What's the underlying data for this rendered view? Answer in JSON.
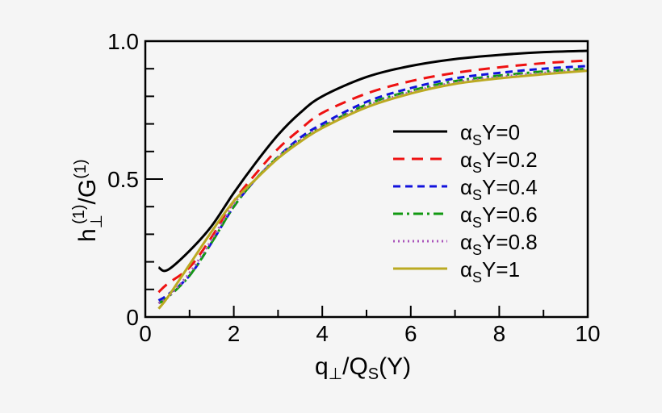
{
  "chart_data": {
    "type": "line",
    "title": "",
    "xlabel": "q⊥/Qs(Y)",
    "ylabel": "h⊥(1)/G(1)",
    "xlim": [
      0,
      10
    ],
    "ylim": [
      0,
      1.0
    ],
    "x_ticks": [
      "0",
      "2",
      "4",
      "6",
      "8",
      "10"
    ],
    "y_ticks": [
      "0",
      "0.5",
      "1.0"
    ],
    "grid": false,
    "legend_position": "inside right",
    "series": [
      {
        "name": "αsY=0",
        "color": "#000000",
        "dash": "solid",
        "x": [
          0.3,
          0.5,
          1,
          1.5,
          2,
          2.5,
          3,
          3.5,
          4,
          5,
          6,
          7,
          8,
          9,
          10
        ],
        "y": [
          0.18,
          0.17,
          0.24,
          0.33,
          0.45,
          0.56,
          0.66,
          0.74,
          0.8,
          0.87,
          0.91,
          0.935,
          0.95,
          0.96,
          0.965
        ]
      },
      {
        "name": "αsY=0.2",
        "color": "#ee1111",
        "dash": "dashed",
        "x": [
          0.3,
          0.5,
          1,
          1.5,
          2,
          2.5,
          3,
          3.5,
          4,
          5,
          6,
          7,
          8,
          9,
          10
        ],
        "y": [
          0.09,
          0.12,
          0.18,
          0.29,
          0.42,
          0.52,
          0.61,
          0.68,
          0.74,
          0.81,
          0.855,
          0.885,
          0.905,
          0.92,
          0.93
        ]
      },
      {
        "name": "αsY=0.4",
        "color": "#1111dd",
        "dash": "short-dashed",
        "x": [
          0.3,
          0.5,
          1,
          1.5,
          2,
          2.5,
          3,
          3.5,
          4,
          5,
          6,
          7,
          8,
          9,
          10
        ],
        "y": [
          0.06,
          0.08,
          0.15,
          0.27,
          0.4,
          0.5,
          0.58,
          0.65,
          0.7,
          0.78,
          0.83,
          0.865,
          0.885,
          0.9,
          0.91
        ]
      },
      {
        "name": "αsY=0.6",
        "color": "#119911",
        "dash": "dash-dot",
        "x": [
          0.3,
          0.5,
          1,
          1.5,
          2,
          2.5,
          3,
          3.5,
          4,
          5,
          6,
          7,
          8,
          9,
          10
        ],
        "y": [
          0.05,
          0.07,
          0.15,
          0.27,
          0.4,
          0.5,
          0.58,
          0.64,
          0.69,
          0.77,
          0.82,
          0.855,
          0.875,
          0.89,
          0.9
        ]
      },
      {
        "name": "αsY=0.8",
        "color": "#aa55bb",
        "dash": "dotted",
        "x": [
          0.3,
          0.5,
          1,
          1.5,
          2,
          2.5,
          3,
          3.5,
          4,
          5,
          6,
          7,
          8,
          9,
          10
        ],
        "y": [
          0.05,
          0.07,
          0.16,
          0.28,
          0.41,
          0.5,
          0.58,
          0.64,
          0.69,
          0.765,
          0.815,
          0.85,
          0.87,
          0.885,
          0.897
        ]
      },
      {
        "name": "αsY=1",
        "color": "#bbaa22",
        "dash": "solid",
        "x": [
          0.3,
          0.5,
          1,
          1.5,
          2,
          2.5,
          3,
          3.5,
          4,
          5,
          6,
          7,
          8,
          9,
          10
        ],
        "y": [
          0.03,
          0.07,
          0.19,
          0.31,
          0.42,
          0.5,
          0.575,
          0.635,
          0.685,
          0.76,
          0.81,
          0.845,
          0.865,
          0.88,
          0.893
        ]
      }
    ]
  },
  "axes": {
    "x_label_main": "q",
    "x_label_sub": "⊥",
    "x_label_mid": "/Q",
    "x_label_sub2": "S",
    "x_label_tail": "(Y)",
    "y_label_main": "h",
    "y_label_sub": "⊥",
    "y_label_sup": "(1)",
    "y_label_mid": "/G",
    "y_label_sup2": "(1)"
  },
  "legend": [
    {
      "alpha": "α",
      "sub": "S",
      "text": "Y=0"
    },
    {
      "alpha": "α",
      "sub": "S",
      "text": "Y=0.2"
    },
    {
      "alpha": "α",
      "sub": "S",
      "text": "Y=0.4"
    },
    {
      "alpha": "α",
      "sub": "S",
      "text": "Y=0.6"
    },
    {
      "alpha": "α",
      "sub": "S",
      "text": "Y=0.8"
    },
    {
      "alpha": "α",
      "sub": "S",
      "text": "Y=1"
    }
  ]
}
